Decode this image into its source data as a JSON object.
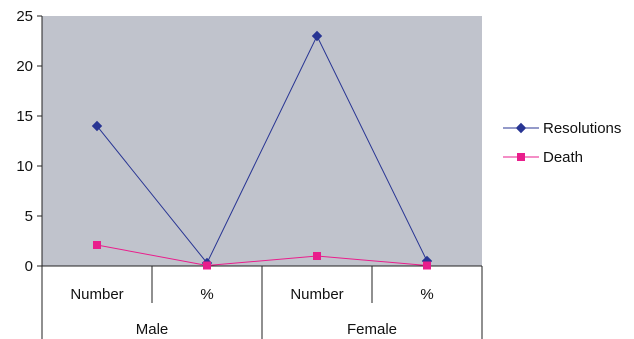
{
  "chart_data": {
    "type": "line",
    "categories": [
      "Number",
      "%",
      "Number",
      "%"
    ],
    "groups": [
      {
        "label": "Male",
        "span": 2
      },
      {
        "label": "Female",
        "span": 2
      }
    ],
    "ylim": [
      0,
      25
    ],
    "yticks": [
      0,
      5,
      10,
      15,
      20,
      25
    ],
    "series": [
      {
        "name": "Resolutions",
        "values": [
          14,
          0.3,
          23,
          0.5
        ],
        "color": "#283593",
        "marker": "diamond"
      },
      {
        "name": "Death",
        "values": [
          2.1,
          0.05,
          1,
          0.05
        ],
        "color": "#e91e8c",
        "marker": "square"
      }
    ],
    "plot_background": "#c0c3cc",
    "legend_position": "right"
  }
}
